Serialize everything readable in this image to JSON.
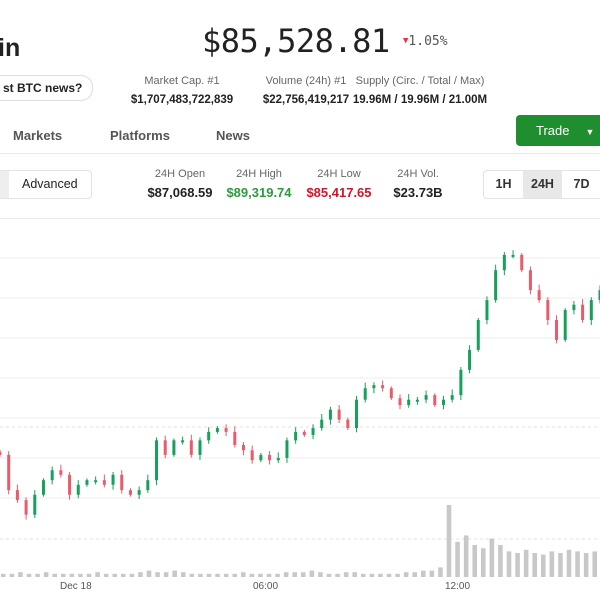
{
  "header": {
    "title": "in",
    "price": "$85,528.81",
    "change": "1.05%",
    "change_direction": "down",
    "news_button": "st BTC news?"
  },
  "stats": [
    {
      "label": "Market Cap. #1",
      "value": "$1,707,483,722,839"
    },
    {
      "label": "Volume (24h) #1",
      "value": "$22,756,419,217"
    },
    {
      "label": "Supply (Circ. / Total / Max)",
      "value": "19.96M / 19.96M / 21.00M"
    }
  ],
  "tabs": [
    "Markets",
    "Platforms",
    "News"
  ],
  "trade_button": "Trade",
  "chart_mode": {
    "selected": "Advanced"
  },
  "day_stats": [
    {
      "label": "24H Open",
      "value": "$87,068.59",
      "color": "#222222"
    },
    {
      "label": "24H High",
      "value": "$89,319.74",
      "color": "#2e9a3e"
    },
    {
      "label": "24H Low",
      "value": "$85,417.65",
      "color": "#d0142c"
    },
    {
      "label": "24H Vol.",
      "value": "$23.73B",
      "color": "#222222"
    }
  ],
  "timeframes": [
    {
      "label": "1H",
      "selected": false
    },
    {
      "label": "24H",
      "selected": true
    },
    {
      "label": "7D",
      "selected": false
    }
  ],
  "colors": {
    "up": "#16a05a",
    "down": "#ea5b6a",
    "volume": "#c8c8c8",
    "trade": "#1e8e2e"
  },
  "chart_data": {
    "type": "candlestick",
    "x_tick_labels": [
      "Dec 18",
      "06:00",
      "12:00"
    ],
    "closes": [
      86300,
      85840,
      85710,
      85520,
      85780,
      85970,
      86100,
      86040,
      85780,
      85910,
      85970,
      85970,
      85910,
      86040,
      85840,
      85780,
      85840,
      85970,
      86490,
      86300,
      86490,
      86490,
      86300,
      86490,
      86600,
      86650,
      86600,
      86430,
      86360,
      86230,
      86300,
      86230,
      86260,
      86490,
      86600,
      86560,
      86650,
      86760,
      86890,
      86760,
      86650,
      87020,
      87170,
      87210,
      87170,
      87040,
      86950,
      87020,
      87020,
      87080,
      86950,
      87020,
      87080,
      87410,
      87670,
      88060,
      88320,
      88710,
      88910,
      88910,
      88710,
      88450,
      88320,
      88060,
      87800,
      88190,
      88260,
      88060,
      88320,
      88450
    ],
    "volumes": [
      2,
      2,
      3,
      2,
      2,
      3,
      2,
      2,
      2,
      2,
      2,
      3,
      2,
      2,
      2,
      2,
      3,
      4,
      3,
      3,
      4,
      3,
      2,
      2,
      2,
      2,
      2,
      2,
      3,
      2,
      2,
      2,
      2,
      3,
      3,
      3,
      4,
      3,
      2,
      2,
      3,
      3,
      2,
      2,
      2,
      2,
      2,
      3,
      3,
      4,
      4,
      6,
      45,
      22,
      26,
      20,
      18,
      24,
      20,
      16,
      15,
      17,
      15,
      14,
      16,
      15,
      17,
      16,
      15,
      16
    ]
  }
}
